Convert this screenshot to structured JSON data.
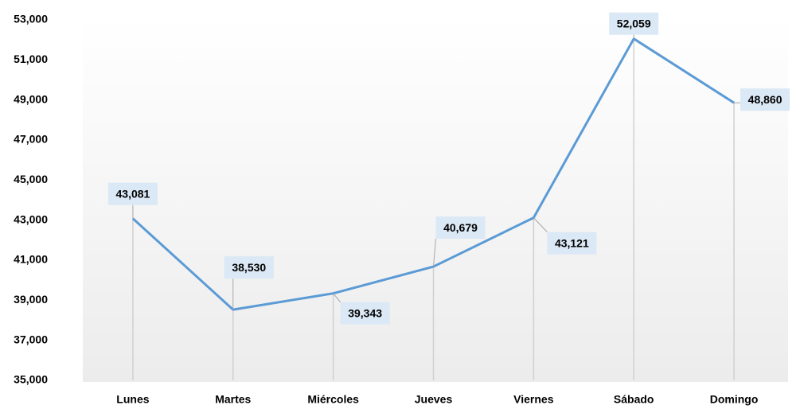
{
  "chart_data": {
    "type": "line",
    "categories": [
      "Lunes",
      "Martes",
      "Miércoles",
      "Jueves",
      "Viernes",
      "Sábado",
      "Domingo"
    ],
    "series": [
      {
        "color": "#5b9bd5",
        "values": [
          43081,
          38530,
          39343,
          40679,
          43121,
          52059,
          48860
        ],
        "value_labels": [
          "43,081",
          "38,530",
          "39,343",
          "40,679",
          "43,121",
          "52,059",
          "48,860"
        ]
      }
    ],
    "ylim": [
      35000,
      53000
    ],
    "yticks": [
      {
        "value": 35000,
        "label": "35,000"
      },
      {
        "value": 37000,
        "label": "37,000"
      },
      {
        "value": 39000,
        "label": "39,000"
      },
      {
        "value": 41000,
        "label": "41,000"
      },
      {
        "value": 43000,
        "label": "43,000"
      },
      {
        "value": 45000,
        "label": "45,000"
      },
      {
        "value": 47000,
        "label": "47,000"
      },
      {
        "value": 49000,
        "label": "49,000"
      },
      {
        "value": 51000,
        "label": "51,000"
      },
      {
        "value": 53000,
        "label": "53,000"
      }
    ]
  }
}
